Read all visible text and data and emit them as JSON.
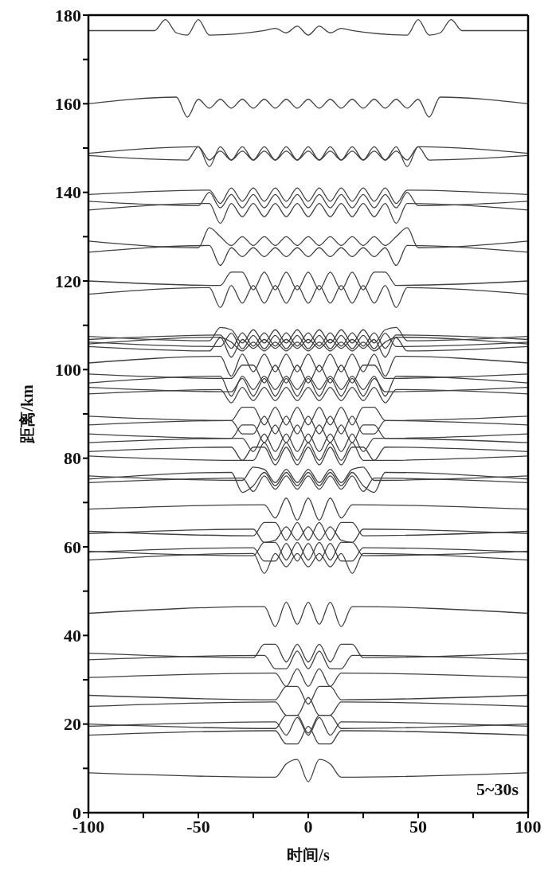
{
  "chart_data": {
    "type": "line",
    "xlabel": "时间/s",
    "ylabel": "距离/km",
    "annotations": [
      "5~30s"
    ],
    "xlim": [
      -100,
      100
    ],
    "xticks": [
      -100,
      {
        "value": -75,
        "label": null
      },
      -50,
      {
        "value": -25,
        "label": null
      },
      0,
      {
        "value": 25,
        "label": null
      },
      50,
      {
        "value": 75,
        "label": null
      },
      100
    ],
    "ylim": [
      0,
      180
    ],
    "yticks": [
      0,
      {
        "value": 10,
        "label": null
      },
      20,
      {
        "value": 30,
        "label": null
      },
      40,
      {
        "value": 50,
        "label": null
      },
      60,
      {
        "value": 70,
        "label": null
      },
      80,
      {
        "value": 90,
        "label": null
      },
      100,
      {
        "value": 110,
        "label": null
      },
      120,
      {
        "value": 130,
        "label": null
      },
      140,
      {
        "value": 150,
        "label": null
      },
      160,
      {
        "value": 170,
        "label": null
      },
      180
    ],
    "series": [
      {
        "color": "#404040",
        "x": [
          -100,
          -70,
          -65,
          -60,
          -55,
          -50,
          -45,
          -20,
          -15,
          -10,
          -5,
          0,
          5,
          10,
          15,
          20,
          45,
          50,
          55,
          60,
          65,
          70,
          100
        ],
        "values": [
          176.5,
          176.5,
          179,
          176,
          175.5,
          179,
          175.5,
          176.5,
          177,
          176,
          177.5,
          175.5,
          177.5,
          176,
          177,
          176.5,
          175.5,
          179,
          175.5,
          176,
          179,
          176.5,
          176.5
        ]
      },
      {
        "color": "#404040",
        "x": [
          -100,
          -60,
          -55,
          -50,
          -45,
          -40,
          -35,
          -30,
          -25,
          -20,
          -15,
          -10,
          -5,
          0,
          5,
          10,
          15,
          20,
          25,
          30,
          35,
          40,
          45,
          50,
          55,
          60,
          100
        ],
        "values": [
          160,
          161.5,
          157,
          161,
          159,
          161,
          159,
          161,
          159,
          161,
          159,
          161,
          159,
          161,
          159,
          161,
          159,
          161,
          159,
          161,
          159,
          161,
          159,
          161,
          157,
          161.5,
          160
        ]
      },
      {
        "color": "#404040",
        "x": [
          -100,
          -50,
          -45,
          -40,
          -35,
          -30,
          -25,
          -20,
          -15,
          -10,
          -5,
          0,
          5,
          10,
          15,
          20,
          25,
          30,
          35,
          40,
          45,
          50,
          100
        ],
        "values": [
          148.8,
          150.3,
          145.8,
          150.3,
          147.3,
          150.3,
          147.3,
          150.3,
          147.3,
          150.3,
          147.3,
          150.3,
          147.3,
          150.3,
          147.3,
          150.3,
          147.3,
          150.3,
          147.3,
          150.3,
          145.8,
          150.3,
          148.8
        ]
      },
      {
        "color": "#404040",
        "x": [
          -100,
          -55,
          -50,
          -45,
          -40,
          -35,
          -30,
          -25,
          -20,
          -15,
          -10,
          -5,
          0,
          5,
          10,
          15,
          20,
          25,
          30,
          35,
          40,
          45,
          50,
          55,
          100
        ],
        "values": [
          148.3,
          147.3,
          150.3,
          147.3,
          149.3,
          147.3,
          149.3,
          147.3,
          149.3,
          147.3,
          149.3,
          147.3,
          149.3,
          147.3,
          149.3,
          147.3,
          149.3,
          147.3,
          149.3,
          147.3,
          149.3,
          147.3,
          150.3,
          147.3,
          148.3
        ]
      },
      {
        "color": "#404040",
        "x": [
          -100,
          -45,
          -40,
          -35,
          -30,
          -25,
          -20,
          -15,
          -10,
          -5,
          0,
          5,
          10,
          15,
          20,
          25,
          30,
          35,
          40,
          45,
          100
        ],
        "values": [
          139.5,
          140.5,
          137.5,
          141,
          138,
          141,
          138,
          141,
          138,
          141,
          138,
          141,
          138,
          141,
          138,
          141,
          138,
          141,
          137.5,
          140.5,
          139.5
        ]
      },
      {
        "color": "#404040",
        "x": [
          -100,
          -50,
          -45,
          -40,
          -35,
          -30,
          -25,
          -20,
          -15,
          -10,
          -5,
          0,
          5,
          10,
          15,
          20,
          25,
          30,
          35,
          40,
          45,
          50,
          100
        ],
        "values": [
          138,
          137,
          140,
          136.5,
          139.5,
          136.5,
          139.5,
          136.5,
          139.5,
          136.5,
          139.5,
          136.5,
          139.5,
          136.5,
          139.5,
          136.5,
          139.5,
          136.5,
          139.5,
          136.5,
          140,
          137,
          138
        ]
      },
      {
        "color": "#404040",
        "x": [
          -100,
          -45,
          -40,
          -35,
          -30,
          -25,
          -20,
          -15,
          -10,
          -5,
          0,
          5,
          10,
          15,
          20,
          25,
          30,
          35,
          40,
          45,
          100
        ],
        "values": [
          136,
          137.5,
          133,
          137.5,
          134.5,
          137.5,
          134.5,
          137.5,
          134.5,
          137.5,
          134.5,
          137.5,
          134.5,
          137.5,
          134.5,
          137.5,
          134.5,
          137.5,
          133,
          137.5,
          136
        ]
      },
      {
        "color": "#404040",
        "x": [
          -100,
          -50,
          -45,
          -40,
          -35,
          -30,
          -25,
          -20,
          -15,
          -10,
          -5,
          0,
          5,
          10,
          15,
          20,
          25,
          30,
          35,
          40,
          45,
          50,
          100
        ],
        "values": [
          129,
          127.5,
          132,
          130,
          128,
          130,
          128,
          130,
          128,
          130,
          128,
          130,
          128,
          130,
          128,
          130,
          128,
          130,
          128,
          130,
          132,
          127.5,
          129
        ]
      },
      {
        "color": "#404040",
        "x": [
          -100,
          -45,
          -40,
          -35,
          -30,
          -25,
          -20,
          -15,
          -10,
          -5,
          0,
          5,
          10,
          15,
          20,
          25,
          30,
          35,
          40,
          45,
          100
        ],
        "values": [
          126.5,
          128,
          123.5,
          127.5,
          125.5,
          127.5,
          125.5,
          127.5,
          125.5,
          127.5,
          125.5,
          127.5,
          125.5,
          127.5,
          125.5,
          127.5,
          125.5,
          127.5,
          123.5,
          128,
          126.5
        ]
      },
      {
        "color": "#404040",
        "x": [
          -100,
          -40,
          -35,
          -30,
          -25,
          -20,
          -15,
          -10,
          -5,
          0,
          5,
          10,
          15,
          20,
          25,
          30,
          35,
          40,
          100
        ],
        "values": [
          120,
          119,
          122,
          122,
          118,
          122,
          118,
          122,
          118,
          122,
          118,
          122,
          118,
          122,
          118,
          122,
          122,
          119,
          120
        ]
      },
      {
        "color": "#404040",
        "x": [
          -100,
          -45,
          -40,
          -35,
          -30,
          -25,
          -20,
          -15,
          -10,
          -5,
          0,
          5,
          10,
          15,
          20,
          25,
          30,
          35,
          40,
          45,
          100
        ],
        "values": [
          117,
          118.5,
          114,
          119,
          115,
          119,
          115,
          119,
          115,
          119,
          115,
          119,
          115,
          119,
          115,
          119,
          115,
          119,
          114,
          118.5,
          117
        ]
      },
      {
        "color": "#404040",
        "x": [
          -100,
          -45,
          -40,
          -35,
          -30,
          -25,
          -20,
          -15,
          -10,
          -5,
          0,
          5,
          10,
          15,
          20,
          25,
          30,
          35,
          40,
          45,
          100
        ],
        "values": [
          107.5,
          106.5,
          109.5,
          109,
          106,
          109,
          106,
          109,
          106,
          109,
          106,
          109,
          106,
          109,
          106,
          109,
          106,
          109,
          109.5,
          106.5,
          107.5
        ]
      },
      {
        "color": "#404040",
        "x": [
          -100,
          -40,
          -35,
          -30,
          -25,
          -20,
          -15,
          -10,
          -5,
          0,
          5,
          10,
          15,
          20,
          25,
          30,
          35,
          40,
          100
        ],
        "values": [
          106.8,
          107.8,
          104.8,
          108.3,
          105.3,
          108.3,
          105.3,
          108.3,
          105.3,
          108.3,
          105.3,
          108.3,
          105.3,
          108.3,
          105.3,
          108.3,
          104.8,
          107.8,
          106.8
        ]
      },
      {
        "color": "#404040",
        "x": [
          -100,
          -40,
          -35,
          -30,
          -25,
          -20,
          -15,
          -10,
          -5,
          0,
          5,
          10,
          15,
          20,
          25,
          30,
          35,
          40,
          100
        ],
        "values": [
          106.2,
          105.2,
          108.2,
          104.7,
          107.7,
          104.7,
          107.7,
          104.7,
          107.7,
          104.7,
          107.7,
          104.7,
          107.7,
          104.7,
          107.7,
          104.7,
          108.2,
          105.2,
          106.2
        ]
      },
      {
        "color": "#404040",
        "x": [
          -100,
          -40,
          -35,
          -30,
          -25,
          -20,
          -15,
          -10,
          -5,
          0,
          5,
          10,
          15,
          20,
          25,
          30,
          35,
          40,
          100
        ],
        "values": [
          105.8,
          107.3,
          102.8,
          106.8,
          104.8,
          106.8,
          104.8,
          106.8,
          104.8,
          106.8,
          104.8,
          106.8,
          104.8,
          106.8,
          104.8,
          106.8,
          102.8,
          107.3,
          105.8
        ]
      },
      {
        "color": "#404040",
        "x": [
          -100,
          -45,
          -40,
          -35,
          -30,
          -25,
          -20,
          -15,
          -10,
          -5,
          0,
          5,
          10,
          15,
          20,
          25,
          30,
          35,
          40,
          45,
          100
        ],
        "values": [
          105.2,
          104.2,
          107.2,
          106.2,
          104.2,
          106.2,
          104.2,
          106.2,
          104.2,
          106.2,
          104.2,
          106.2,
          104.2,
          106.2,
          104.2,
          106.2,
          104.2,
          106.2,
          107.2,
          104.2,
          105.2
        ]
      },
      {
        "color": "#404040",
        "x": [
          -100,
          -40,
          -35,
          -30,
          -25,
          -20,
          -15,
          -10,
          -5,
          0,
          5,
          10,
          15,
          20,
          25,
          30,
          35,
          40,
          100
        ],
        "values": [
          101.5,
          103,
          98.5,
          103.5,
          99.5,
          103.5,
          99.5,
          103.5,
          99.5,
          103.5,
          99.5,
          103.5,
          99.5,
          103.5,
          99.5,
          103.5,
          98.5,
          103,
          101.5
        ]
      },
      {
        "color": "#404040",
        "x": [
          -100,
          -35,
          -30,
          -25,
          -20,
          -15,
          -10,
          -5,
          0,
          5,
          10,
          15,
          20,
          25,
          30,
          35,
          100
        ],
        "values": [
          99,
          98,
          101,
          101,
          97,
          101,
          97,
          101,
          97,
          101,
          97,
          101,
          97,
          101,
          101,
          98,
          99
        ]
      },
      {
        "color": "#404040",
        "x": [
          -100,
          -40,
          -35,
          -30,
          -25,
          -20,
          -15,
          -10,
          -5,
          0,
          5,
          10,
          15,
          20,
          25,
          30,
          35,
          40,
          100
        ],
        "values": [
          97,
          98.5,
          94,
          98.5,
          95.5,
          98.5,
          95.5,
          98.5,
          95.5,
          98.5,
          95.5,
          98.5,
          95.5,
          98.5,
          95.5,
          98.5,
          94,
          98.5,
          97
        ]
      },
      {
        "color": "#404040",
        "x": [
          -100,
          -35,
          -30,
          -25,
          -20,
          -15,
          -10,
          -5,
          0,
          5,
          10,
          15,
          20,
          25,
          30,
          35,
          100
        ],
        "values": [
          96,
          95,
          98,
          94,
          98,
          94,
          98,
          94,
          98,
          94,
          98,
          94,
          98,
          94,
          98,
          95,
          96
        ]
      },
      {
        "color": "#404040",
        "x": [
          -100,
          -40,
          -35,
          -30,
          -25,
          -20,
          -15,
          -10,
          -5,
          0,
          5,
          10,
          15,
          20,
          25,
          30,
          35,
          40,
          100
        ],
        "values": [
          94.5,
          95.5,
          92.5,
          96,
          93,
          96,
          93,
          96,
          93,
          96,
          93,
          96,
          93,
          96,
          93,
          96,
          92.5,
          95.5,
          94.5
        ]
      },
      {
        "color": "#404040",
        "x": [
          -100,
          -35,
          -30,
          -25,
          -20,
          -15,
          -10,
          -5,
          0,
          5,
          10,
          15,
          20,
          25,
          30,
          35,
          100
        ],
        "values": [
          89.5,
          88.5,
          91.5,
          91.5,
          87.5,
          91.5,
          87.5,
          91.5,
          87.5,
          91.5,
          87.5,
          91.5,
          87.5,
          91.5,
          91.5,
          88.5,
          89.5
        ]
      },
      {
        "color": "#404040",
        "x": [
          -100,
          -35,
          -30,
          -25,
          -20,
          -15,
          -10,
          -5,
          0,
          5,
          10,
          15,
          20,
          25,
          30,
          35,
          100
        ],
        "values": [
          87.5,
          88.5,
          85.5,
          85.5,
          89.5,
          85.5,
          89.5,
          85.5,
          89.5,
          85.5,
          89.5,
          85.5,
          89.5,
          85.5,
          85.5,
          88.5,
          87.5
        ]
      },
      {
        "color": "#404040",
        "x": [
          -100,
          -35,
          -30,
          -25,
          -20,
          -15,
          -10,
          -5,
          0,
          5,
          10,
          15,
          20,
          25,
          30,
          35,
          100
        ],
        "values": [
          85.5,
          84.5,
          87.5,
          87.5,
          83.5,
          87.5,
          83.5,
          87.5,
          83.5,
          87.5,
          83.5,
          87.5,
          83.5,
          87.5,
          87.5,
          84.5,
          85.5
        ]
      },
      {
        "color": "#404040",
        "x": [
          -100,
          -30,
          -25,
          -20,
          -15,
          -10,
          -5,
          0,
          5,
          10,
          15,
          20,
          25,
          30,
          100
        ],
        "values": [
          83.5,
          84.5,
          81.5,
          85.5,
          81.5,
          85.5,
          81.5,
          85.5,
          81.5,
          85.5,
          81.5,
          85.5,
          81.5,
          84.5,
          83.5
        ]
      },
      {
        "color": "#404040",
        "x": [
          -100,
          -35,
          -30,
          -25,
          -20,
          -15,
          -10,
          -5,
          0,
          5,
          10,
          15,
          20,
          25,
          30,
          35,
          100
        ],
        "values": [
          81.5,
          82.5,
          79.5,
          79.5,
          83.5,
          79.5,
          83.5,
          79.5,
          83.5,
          79.5,
          83.5,
          79.5,
          83.5,
          79.5,
          79.5,
          82.5,
          81.5
        ]
      },
      {
        "color": "#404040",
        "x": [
          -100,
          -30,
          -25,
          -20,
          -15,
          -10,
          -5,
          0,
          5,
          10,
          15,
          20,
          25,
          30,
          100
        ],
        "values": [
          80.5,
          79.5,
          82.5,
          82.5,
          78.5,
          82.5,
          78.5,
          82.5,
          78.5,
          82.5,
          78.5,
          82.5,
          82.5,
          79.5,
          80.5
        ]
      },
      {
        "color": "#404040",
        "x": [
          -100,
          -30,
          -25,
          -20,
          -15,
          -10,
          -5,
          0,
          5,
          10,
          15,
          20,
          25,
          30,
          100
        ],
        "values": [
          76,
          75,
          78,
          77.5,
          74.5,
          77.5,
          74.5,
          77.5,
          74.5,
          77.5,
          74.5,
          77.5,
          78,
          75,
          76
        ]
      },
      {
        "color": "#404040",
        "x": [
          -100,
          -35,
          -30,
          -25,
          -20,
          -15,
          -10,
          -5,
          0,
          5,
          10,
          15,
          20,
          25,
          30,
          35,
          100
        ],
        "values": [
          75.3,
          76.8,
          72.3,
          73.8,
          76.8,
          73.8,
          76.8,
          73.8,
          76.8,
          73.8,
          76.8,
          73.8,
          76.8,
          73.8,
          72.3,
          76.8,
          75.3
        ]
      },
      {
        "color": "#404040",
        "x": [
          -100,
          -30,
          -25,
          -20,
          -15,
          -10,
          -5,
          0,
          5,
          10,
          15,
          20,
          25,
          30,
          100
        ],
        "values": [
          74.5,
          75.5,
          72.5,
          76,
          73,
          76,
          73,
          76,
          73,
          76,
          73,
          76,
          72.5,
          75.5,
          74.5
        ]
      },
      {
        "color": "#404040",
        "x": [
          -100,
          -20,
          -15,
          -10,
          -5,
          0,
          5,
          10,
          15,
          20,
          100
        ],
        "values": [
          68.5,
          69.5,
          66.5,
          71,
          66,
          71,
          66,
          71,
          66.5,
          69.5,
          68.5
        ]
      },
      {
        "color": "#404040",
        "x": [
          -100,
          -25,
          -20,
          -15,
          -10,
          -5,
          0,
          5,
          10,
          15,
          20,
          25,
          100
        ],
        "values": [
          63.5,
          62.5,
          65.5,
          65.5,
          61.5,
          65.5,
          61.5,
          65.5,
          61.5,
          65.5,
          65.5,
          62.5,
          63.5
        ]
      },
      {
        "color": "#404040",
        "x": [
          -100,
          -25,
          -20,
          -15,
          -10,
          -5,
          0,
          5,
          10,
          15,
          20,
          25,
          100
        ],
        "values": [
          63,
          64,
          61,
          61.5,
          64.5,
          61.5,
          64.5,
          61.5,
          64.5,
          61.5,
          61,
          64,
          63
        ]
      },
      {
        "color": "#404040",
        "x": [
          -100,
          -25,
          -20,
          -15,
          -10,
          -5,
          0,
          5,
          10,
          15,
          20,
          25,
          100
        ],
        "values": [
          59,
          58,
          61,
          61,
          57,
          61,
          57,
          61,
          57,
          61,
          61,
          58,
          59
        ]
      },
      {
        "color": "#404040",
        "x": [
          -100,
          -25,
          -20,
          -15,
          -10,
          -5,
          0,
          5,
          10,
          15,
          20,
          25,
          100
        ],
        "values": [
          58.8,
          59.8,
          56.8,
          56.8,
          60.8,
          56.8,
          60.8,
          56.8,
          60.8,
          56.8,
          56.8,
          59.8,
          58.8
        ]
      },
      {
        "color": "#404040",
        "x": [
          -100,
          -25,
          -20,
          -15,
          -10,
          -5,
          0,
          5,
          10,
          15,
          20,
          25,
          100
        ],
        "values": [
          57,
          58.5,
          54,
          58.5,
          55.5,
          58.5,
          55.5,
          58.5,
          55.5,
          58.5,
          54,
          58.5,
          57
        ]
      },
      {
        "color": "#404040",
        "x": [
          -100,
          -20,
          -15,
          -10,
          -5,
          0,
          5,
          10,
          15,
          20,
          100
        ],
        "values": [
          45,
          46.5,
          42,
          47.5,
          42.5,
          47.5,
          42.5,
          47.5,
          42,
          46.5,
          45
        ]
      },
      {
        "color": "#404040",
        "x": [
          -100,
          -25,
          -20,
          -15,
          -10,
          -5,
          0,
          5,
          10,
          15,
          20,
          25,
          100
        ],
        "values": [
          36,
          35,
          38,
          38,
          34,
          38,
          34,
          38,
          34,
          38,
          38,
          35,
          36
        ]
      },
      {
        "color": "#404040",
        "x": [
          -100,
          -20,
          -15,
          -10,
          -5,
          0,
          5,
          10,
          15,
          20,
          100
        ],
        "values": [
          34.5,
          35.5,
          32.5,
          32.5,
          36.5,
          32.5,
          36.5,
          32.5,
          32.5,
          35.5,
          34.5
        ]
      },
      {
        "color": "#404040",
        "x": [
          -100,
          -15,
          -10,
          -5,
          0,
          5,
          10,
          15,
          100
        ],
        "values": [
          30.5,
          31.5,
          28.5,
          32.5,
          28.5,
          32.5,
          28.5,
          31.5,
          30.5
        ]
      },
      {
        "color": "#404040",
        "x": [
          -100,
          -15,
          -10,
          -5,
          0,
          5,
          10,
          15,
          100
        ],
        "values": [
          26.5,
          25.5,
          28.5,
          28.5,
          24.5,
          28.5,
          28.5,
          25.5,
          26.5
        ]
      },
      {
        "color": "#404040",
        "x": [
          -100,
          -15,
          -10,
          -5,
          0,
          5,
          10,
          15,
          100
        ],
        "values": [
          24,
          25,
          22,
          22,
          26,
          22,
          22,
          25,
          24
        ]
      },
      {
        "color": "#404040",
        "x": [
          -100,
          -15,
          -10,
          -5,
          0,
          5,
          10,
          15,
          100
        ],
        "values": [
          20,
          19,
          22,
          22,
          18,
          22,
          22,
          19,
          20
        ]
      },
      {
        "color": "#404040",
        "x": [
          -100,
          -15,
          -10,
          -5,
          0,
          5,
          10,
          15,
          100
        ],
        "values": [
          19.5,
          20.5,
          17.5,
          21.5,
          17.5,
          21.5,
          17.5,
          20.5,
          19.5
        ]
      },
      {
        "color": "#404040",
        "x": [
          -100,
          -15,
          -10,
          -5,
          0,
          5,
          10,
          15,
          100
        ],
        "values": [
          17.5,
          18.5,
          15.5,
          15.5,
          19.5,
          15.5,
          15.5,
          18.5,
          17.5
        ]
      },
      {
        "color": "#404040",
        "x": [
          -100,
          -15,
          -10,
          -5,
          0,
          5,
          10,
          15,
          100
        ],
        "values": [
          9,
          8,
          11,
          12,
          7,
          12,
          11,
          8,
          9
        ]
      }
    ]
  }
}
